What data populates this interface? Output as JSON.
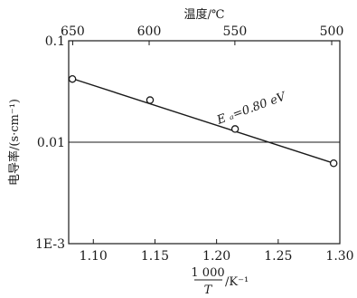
{
  "chart_data": {
    "type": "scatter",
    "x_top_title": "温度/℃",
    "ylabel": "电导率/(s·cm⁻¹)",
    "xlabel_numerator": "1 000",
    "xlabel_denominator": "T",
    "xlabel_unit": "/K⁻¹",
    "xlim": [
      1.08,
      1.3
    ],
    "x_ticks": [
      1.1,
      1.15,
      1.2,
      1.25,
      1.3
    ],
    "x_tick_labels": [
      "1.10",
      "1.15",
      "1.20",
      "1.25",
      "1.30"
    ],
    "y_scale": "log",
    "ylim": [
      0.001,
      0.1
    ],
    "y_ticks": [
      0.001,
      0.01,
      0.1
    ],
    "y_tick_labels": [
      "1E-3",
      "0.01",
      "0.1"
    ],
    "top_ticks": [
      650,
      600,
      550,
      500
    ],
    "top_tick_labels": [
      "650",
      "600",
      "550",
      "500"
    ],
    "reference_line_y": 0.01,
    "series": [
      {
        "marker": "circle-open",
        "x": [
          1.083,
          1.146,
          1.215,
          1.295
        ],
        "y": [
          0.042,
          0.026,
          0.0135,
          0.0062
        ]
      }
    ],
    "fit_line": {
      "x": [
        1.08,
        1.297
      ],
      "y": [
        0.0435,
        0.0061
      ]
    },
    "annotation": "E ₐ=0.80 eV",
    "grid": false,
    "color": "#1a1a1a"
  }
}
